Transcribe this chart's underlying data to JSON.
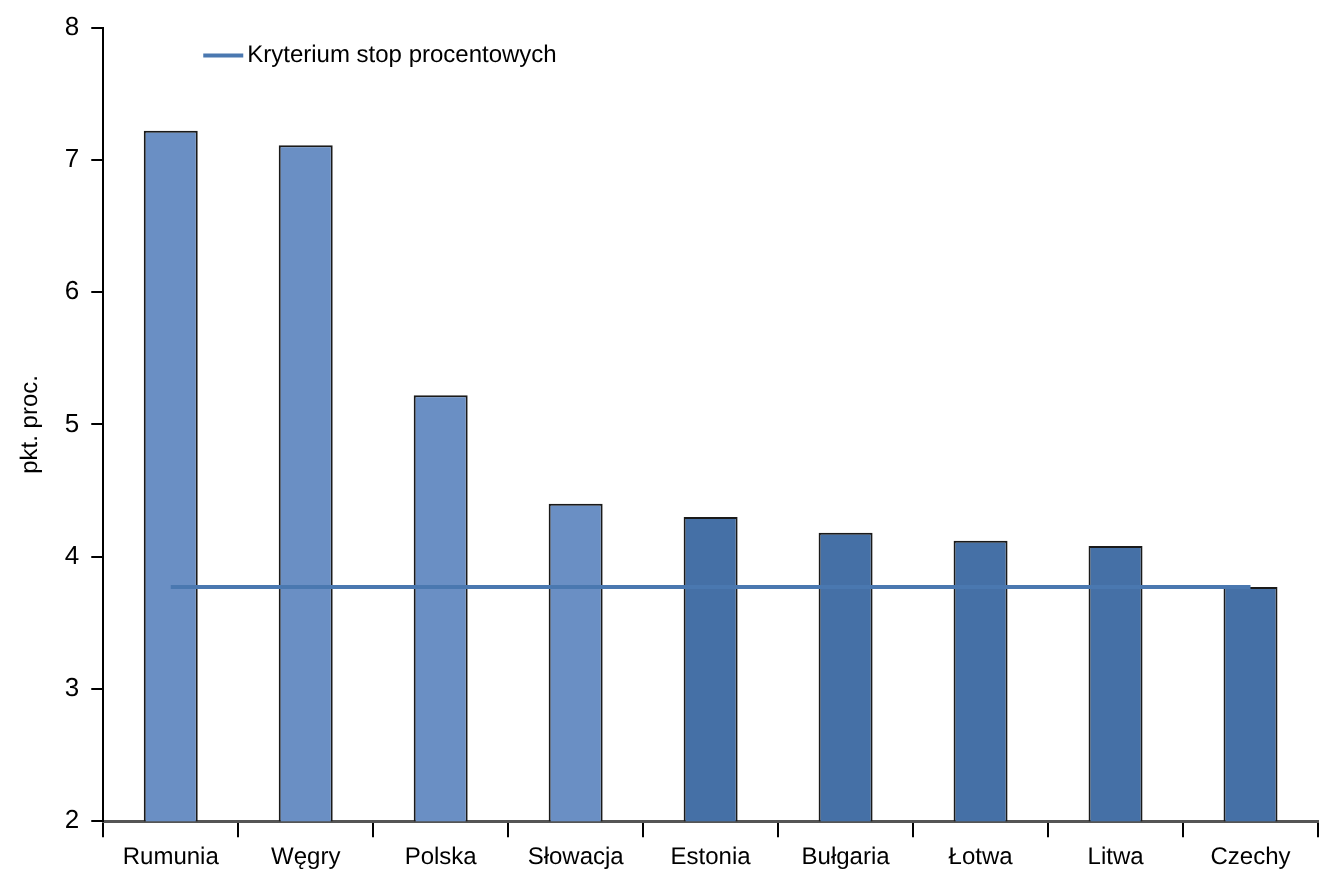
{
  "chart_data": {
    "type": "bar",
    "ylabel": "pkt. proc.",
    "categories": [
      "Rumunia",
      "Węgry",
      "Polska",
      "Słowacja",
      "Estonia",
      "Bułgaria",
      "Łotwa",
      "Litwa",
      "Czechy"
    ],
    "series": [
      {
        "colors": [
          "#6a8fc4",
          "#6a8fc4",
          "#6a8fc4",
          "#6a8fc4",
          "#4570a6",
          "#4570a6",
          "#4570a6",
          "#4570a6",
          "#4570a6"
        ],
        "values": [
          7.22,
          7.11,
          5.22,
          4.4,
          4.3,
          4.18,
          4.12,
          4.08,
          3.77
        ]
      },
      {
        "type": "line",
        "name": "Kryterium stop procentowych",
        "color": "#4a78b0",
        "values": [
          3.77,
          3.77,
          3.77,
          3.77,
          3.77,
          3.77,
          3.77,
          3.77,
          3.77
        ],
        "marker": "none"
      }
    ],
    "ylim": [
      2,
      8
    ],
    "yticks": [
      2,
      3,
      4,
      5,
      6,
      7,
      8
    ],
    "grid": false,
    "legend": "top left"
  }
}
